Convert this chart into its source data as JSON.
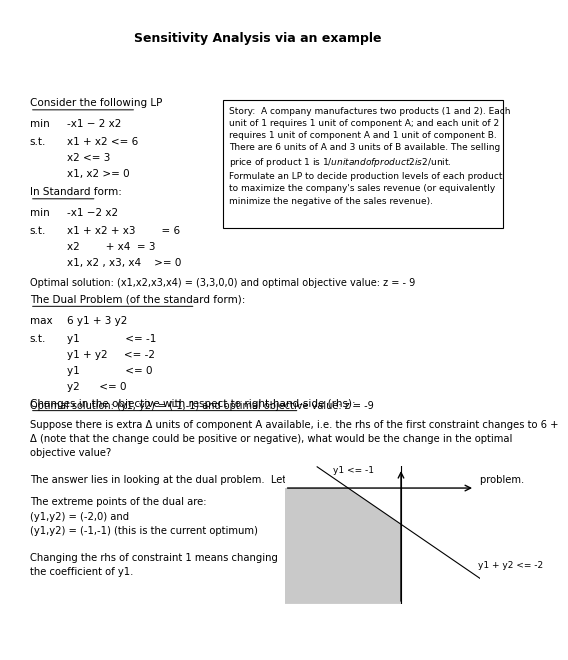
{
  "title": "Sensitivity Analysis via an example",
  "title_fontsize": 9,
  "bg_color": "#ffffff",
  "text_color": "#000000",
  "font_size": 7.5,
  "box_text": "Story:  A company manufactures two products (1 and 2). Each\nunit of 1 requires 1 unit of component A; and each unit of 2\nrequires 1 unit of component A and 1 unit of component B.\nThere are 6 units of A and 3 units of B available. The selling\nprice of product 1 is $1/unit and of product 2 is $2/unit.\nFormulate an LP to decide production levels of each product\nto maximize the company's sales revenue (or equivalently\nminimize the negative of the sales revenue).",
  "lp1_lines": [
    [
      "min",
      "-x1 − 2 x2"
    ],
    [
      "s.t.",
      "x1 + x2 <= 6"
    ],
    [
      "",
      "x2 <= 3"
    ],
    [
      "",
      "x1, x2 >= 0"
    ]
  ],
  "lp2_lines": [
    [
      "min",
      "-x1 −2 x2"
    ],
    [
      "s.t.",
      "x1 + x2 + x3        = 6"
    ],
    [
      "",
      "x2        + x4  = 3"
    ],
    [
      "",
      "x1, x2 , x3, x4    >= 0"
    ]
  ],
  "optimal1": "Optimal solution: (x1,x2,x3,x4) = (3,3,0,0) and optimal objective value: z = - 9",
  "dual_lines": [
    [
      "max",
      "6 y1 + 3 y2"
    ],
    [
      "s.t.",
      "y1              <= -1"
    ],
    [
      "",
      "y1 + y2     <= -2"
    ],
    [
      "",
      "y1              <= 0"
    ],
    [
      "",
      "y2      <= 0"
    ]
  ],
  "optimal2": "Optimal solution: (y1, y2) = (-1,-1) and optimal objective value: z = -9",
  "rhs_para1": "Suppose there is extra Δ units of component A available, i.e. the rhs of the first constraint changes to 6 +\nΔ (note that the change could be positive or negative), what would be the change in the optimal\nobjective value?",
  "rhs_para2": "The answer lies in looking at the dual problem.  Let us plot the feasible region of the dual problem.",
  "extreme_lines": [
    "The extreme points of the dual are:",
    "(y1,y2) = (-2,0) and",
    "(y1,y2) = (-1,-1) (this is the current optimum)"
  ],
  "coeff_lines": [
    "Changing the rhs of constraint 1 means changing",
    "the coefficient of y1."
  ],
  "plot_label1": "y1 <= -1",
  "plot_label2": "y1 + y2 <= -2"
}
